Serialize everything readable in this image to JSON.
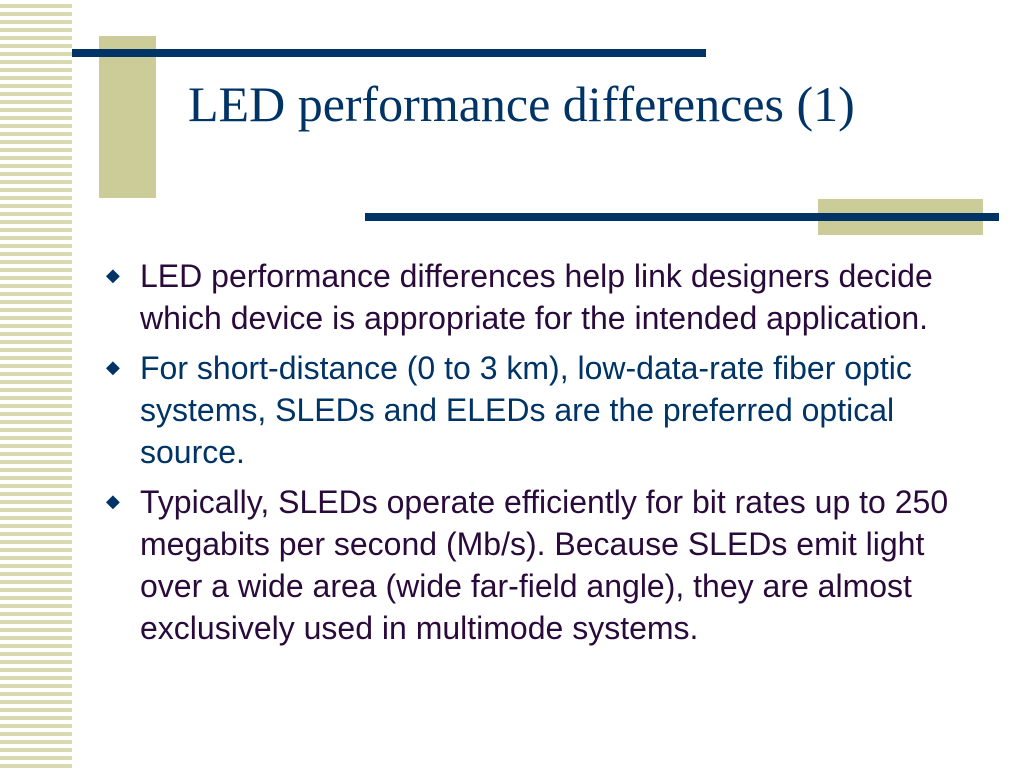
{
  "slide": {
    "title": "LED performance differences (1)",
    "bullet_marker": "◆",
    "bullets": [
      {
        "text": "LED performance differences help link designers decide which device is appropriate for the intended application."
      },
      {
        "text": "For short-distance (0 to 3 km), low-data-rate fiber optic systems, SLEDs and ELEDs are the preferred optical source."
      },
      {
        "text": "Typically, SLEDs operate efficiently for bit rates up to 250 megabits per second (Mb/s). Because SLEDs emit light over a wide area (wide far-field angle), they are almost exclusively used in multimode systems."
      }
    ]
  },
  "colors": {
    "title": "#003366",
    "rule": "#003366",
    "accent_block": "#cccc99",
    "stripe": "#d9d9b0",
    "bullet_text_primary": "#2a0a3a",
    "bullet_text_alt": "#003366",
    "background": "#ffffff"
  }
}
